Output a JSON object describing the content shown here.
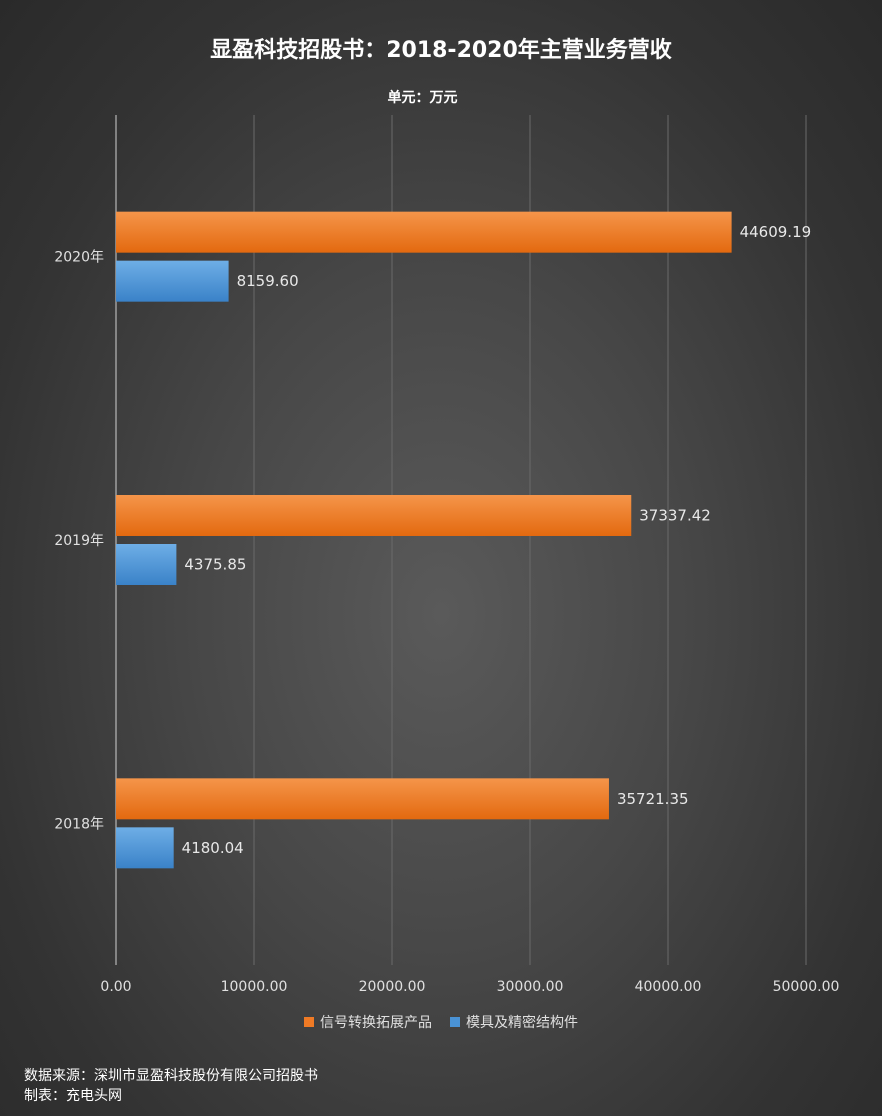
{
  "title": "显盈科技招股书：2018-2020年主营业务营收",
  "unit_label": "单元：万元",
  "footer": {
    "source": "数据来源：深圳市显盈科技股份有限公司招股书",
    "maker": "制表：充电头网"
  },
  "chart_data": {
    "type": "bar",
    "orientation": "horizontal",
    "categories": [
      "2020年",
      "2019年",
      "2018年"
    ],
    "series": [
      {
        "name": "信号转换拓展产品",
        "values": [
          44609.19,
          37337.42,
          35721.35
        ],
        "labels": [
          "44609.19",
          "37337.42",
          "35721.35"
        ],
        "color": "#ef7a25"
      },
      {
        "name": "模具及精密结构件",
        "values": [
          8159.6,
          4375.85,
          4180.04
        ],
        "labels": [
          "8159.60",
          "4375.85",
          "4180.04"
        ],
        "color": "#4a93d6"
      }
    ],
    "xlim": [
      0,
      50000
    ],
    "xticks": [
      "0.00",
      "10000.00",
      "20000.00",
      "30000.00",
      "40000.00",
      "50000.00"
    ],
    "grid": true,
    "legend": "bottom"
  }
}
